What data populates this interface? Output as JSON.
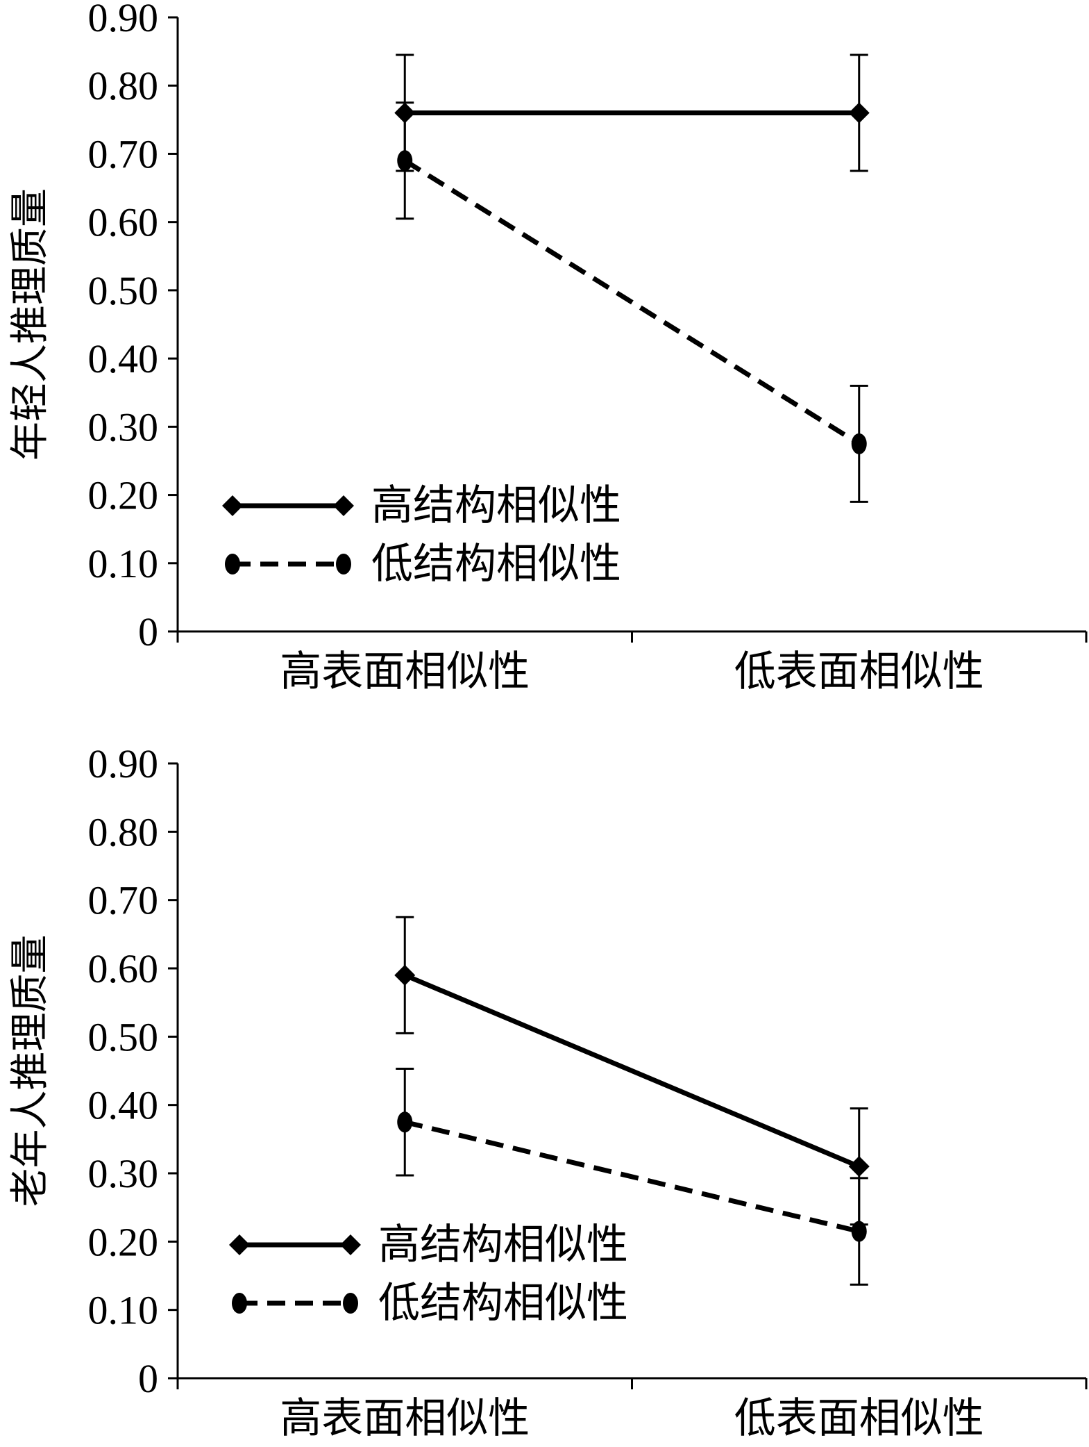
{
  "chart_data": [
    {
      "type": "line",
      "ylabel": "年轻人推理质量",
      "xlabel": "",
      "ylim": [
        0,
        0.9
      ],
      "yticks": [
        "0.90",
        "0.80",
        "0.70",
        "0.60",
        "0.50",
        "0.40",
        "0.30",
        "0.20",
        "0.10",
        "0"
      ],
      "categories": [
        "高表面相似性",
        "低表面相似性"
      ],
      "legend_position": "bottom-left",
      "grid": false,
      "series": [
        {
          "name": "高结构相似性",
          "values": [
            0.76,
            0.76
          ],
          "errors": [
            0.085,
            0.085
          ],
          "line": "solid",
          "marker": "diamond"
        },
        {
          "name": "低结构相似性",
          "values": [
            0.69,
            0.275
          ],
          "errors": [
            0.085,
            0.085
          ],
          "line": "dashed",
          "marker": "circle"
        }
      ]
    },
    {
      "type": "line",
      "ylabel": "老年人推理质量",
      "xlabel": "",
      "ylim": [
        0,
        0.9
      ],
      "yticks": [
        "0.90",
        "0.80",
        "0.70",
        "0.60",
        "0.50",
        "0.40",
        "0.30",
        "0.20",
        "0.10",
        "0"
      ],
      "categories": [
        "高表面相似性",
        "低表面相似性"
      ],
      "legend_position": "bottom-left",
      "grid": false,
      "series": [
        {
          "name": "高结构相似性",
          "values": [
            0.59,
            0.31
          ],
          "errors": [
            0.085,
            0.085
          ],
          "line": "solid",
          "marker": "diamond"
        },
        {
          "name": "低结构相似性",
          "values": [
            0.375,
            0.215
          ],
          "errors": [
            0.078,
            0.078
          ],
          "line": "dashed",
          "marker": "circle"
        }
      ]
    }
  ]
}
